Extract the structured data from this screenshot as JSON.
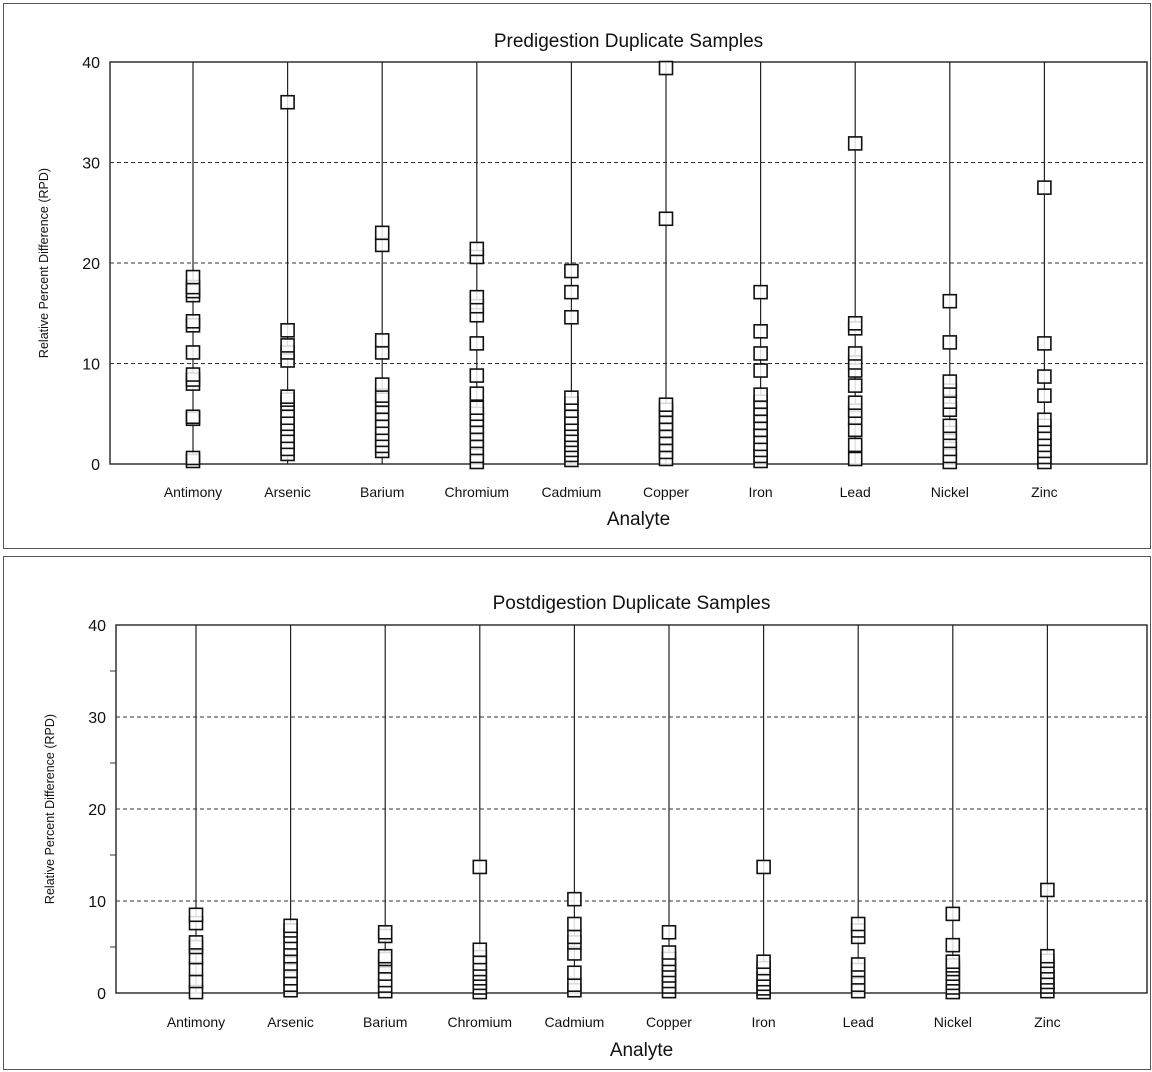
{
  "chart_data": [
    {
      "type": "scatter",
      "title": "Predigestion Duplicate Samples",
      "xlabel": "Analyte",
      "ylabel": "Relative Percent Difference (RPD)",
      "ylim": [
        0,
        40
      ],
      "yticks": [
        "0",
        "10",
        "20",
        "30",
        "40"
      ],
      "grid": "horizontal dashed at 10, 20, 30",
      "categories": [
        "Antimony",
        "Arsenic",
        "Barium",
        "Chromium",
        "Cadmium",
        "Copper",
        "Iron",
        "Lead",
        "Nickel",
        "Zinc"
      ],
      "series": [
        {
          "values": [
            [
              0.3,
              0.6,
              4.5,
              4.7,
              8,
              8.4,
              8.9,
              11.1,
              13.8,
              14.2,
              16.8,
              17.2,
              17.6,
              18.6
            ],
            [
              1.0,
              1.5,
              2.2,
              2.8,
              3.5,
              4.0,
              4.6,
              5.3,
              6.0,
              6.4,
              6.7,
              10.3,
              11.1,
              11.8,
              13.3,
              36
            ],
            [
              1.3,
              1.8,
              2.4,
              3.0,
              3.6,
              4.3,
              5.0,
              5.7,
              6.4,
              6.8,
              7.9,
              11.1,
              12.3,
              21.8,
              23
            ],
            [
              0.2,
              0.8,
              1.6,
              2.3,
              3.0,
              3.7,
              4.4,
              5.0,
              5.6,
              7.0,
              8.8,
              12.0,
              14.8,
              15.7,
              16.6,
              20.6,
              21.4
            ],
            [
              0.4,
              0.9,
              1.4,
              1.9,
              2.4,
              2.9,
              3.5,
              4.0,
              4.6,
              5.3,
              6.0,
              6.6,
              14.6,
              17.1,
              19.2
            ],
            [
              0.5,
              1.2,
              1.9,
              2.6,
              3.3,
              4.0,
              4.7,
              5.4,
              5.9,
              24.4,
              39.4
            ],
            [
              0.3,
              0.8,
              1.4,
              2.0,
              2.7,
              3.4,
              4.1,
              4.8,
              5.5,
              6.2,
              6.9,
              9.3,
              11.0,
              13.2,
              17.1
            ],
            [
              0.5,
              1.9,
              3.4,
              4.6,
              5.3,
              6.1,
              7.8,
              9.3,
              10.1,
              11.0,
              13.5,
              14.0,
              31.9
            ],
            [
              0.2,
              0.8,
              1.5,
              2.3,
              3.1,
              3.8,
              5.4,
              6.2,
              7.3,
              8.2,
              12.1,
              16.2
            ],
            [
              0.2,
              0.7,
              1.3,
              1.9,
              2.5,
              3.1,
              3.8,
              4.4,
              6.8,
              8.7,
              12.0,
              27.5
            ]
          ]
        }
      ]
    },
    {
      "type": "scatter",
      "title": "Postdigestion Duplicate Samples",
      "xlabel": "Analyte",
      "ylabel": "Relative Percent Difference (RPD)",
      "ylim": [
        0,
        40
      ],
      "yticks": [
        "0",
        "10",
        "20",
        "30",
        "40"
      ],
      "grid": "horizontal dashed at 10, 20, 30",
      "categories": [
        "Antimony",
        "Arsenic",
        "Barium",
        "Chromium",
        "Cadmium",
        "Copper",
        "Iron",
        "Lead",
        "Nickel",
        "Zinc"
      ],
      "series": [
        {
          "values": [
            [
              0.1,
              1.3,
              2.6,
              3.9,
              5.0,
              5.5,
              7.6,
              8.5
            ],
            [
              0.3,
              0.9,
              1.6,
              2.4,
              3.2,
              4.0,
              4.8,
              5.5,
              6.2,
              6.8,
              7.3
            ],
            [
              0.2,
              0.8,
              1.4,
              2.1,
              2.9,
              3.7,
              4.0,
              6.2,
              6.6
            ],
            [
              0.1,
              0.6,
              1.1,
              1.6,
              2.1,
              2.6,
              3.2,
              3.9,
              4.7,
              13.7
            ],
            [
              0.3,
              0.9,
              2.2,
              4.3,
              5.5,
              6.1,
              7.5,
              10.2
            ],
            [
              0.2,
              0.7,
              1.3,
              1.9,
              2.5,
              3.1,
              3.7,
              4.4,
              6.6
            ],
            [
              0.1,
              0.5,
              1.0,
              1.5,
              2.1,
              2.7,
              3.4,
              13.7
            ],
            [
              0.2,
              0.9,
              1.7,
              2.5,
              3.1,
              6.1,
              6.8,
              7.5
            ],
            [
              0.1,
              0.6,
              1.1,
              1.6,
              2.1,
              2.6,
              3.0,
              3.4,
              5.2,
              8.6
            ],
            [
              0.2,
              0.7,
              1.2,
              1.7,
              2.3,
              2.9,
              3.5,
              4.0,
              11.2
            ]
          ]
        }
      ]
    }
  ]
}
